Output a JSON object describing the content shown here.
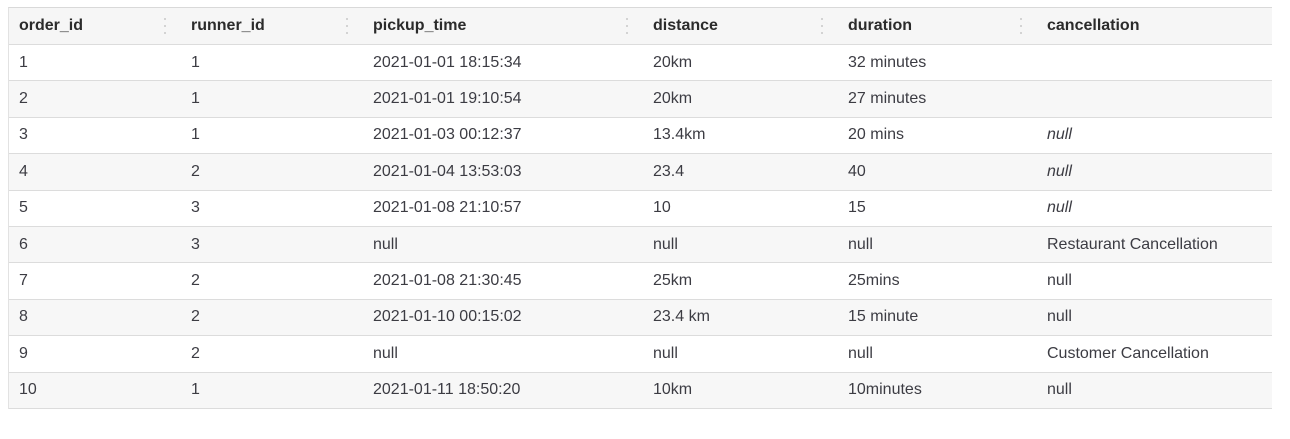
{
  "table": {
    "columns": [
      "order_id",
      "runner_id",
      "pickup_time",
      "distance",
      "duration",
      "cancellation"
    ],
    "rows": [
      {
        "order_id": "1",
        "runner_id": "1",
        "pickup_time": "2021-01-01 18:15:34",
        "distance": "20km",
        "duration": "32 minutes",
        "cancellation": "",
        "cancellation_italic": false
      },
      {
        "order_id": "2",
        "runner_id": "1",
        "pickup_time": "2021-01-01 19:10:54",
        "distance": "20km",
        "duration": "27 minutes",
        "cancellation": "",
        "cancellation_italic": false
      },
      {
        "order_id": "3",
        "runner_id": "1",
        "pickup_time": "2021-01-03 00:12:37",
        "distance": "13.4km",
        "duration": "20 mins",
        "cancellation": "null",
        "cancellation_italic": true
      },
      {
        "order_id": "4",
        "runner_id": "2",
        "pickup_time": "2021-01-04 13:53:03",
        "distance": "23.4",
        "duration": "40",
        "cancellation": "null",
        "cancellation_italic": true
      },
      {
        "order_id": "5",
        "runner_id": "3",
        "pickup_time": "2021-01-08 21:10:57",
        "distance": "10",
        "duration": "15",
        "cancellation": "null",
        "cancellation_italic": true
      },
      {
        "order_id": "6",
        "runner_id": "3",
        "pickup_time": "null",
        "distance": "null",
        "duration": "null",
        "cancellation": "Restaurant Cancellation",
        "cancellation_italic": false
      },
      {
        "order_id": "7",
        "runner_id": "2",
        "pickup_time": "2021-01-08 21:30:45",
        "distance": "25km",
        "duration": "25mins",
        "cancellation": "null",
        "cancellation_italic": false
      },
      {
        "order_id": "8",
        "runner_id": "2",
        "pickup_time": "2021-01-10 00:15:02",
        "distance": "23.4 km",
        "duration": "15 minute",
        "cancellation": "null",
        "cancellation_italic": false
      },
      {
        "order_id": "9",
        "runner_id": "2",
        "pickup_time": "null",
        "distance": "null",
        "duration": "null",
        "cancellation": "Customer Cancellation",
        "cancellation_italic": false
      },
      {
        "order_id": "10",
        "runner_id": "1",
        "pickup_time": "2021-01-11 18:50:20",
        "distance": "10km",
        "duration": "10minutes",
        "cancellation": "null",
        "cancellation_italic": false
      }
    ]
  },
  "column_menu_icon": "vertical-dots-icon"
}
